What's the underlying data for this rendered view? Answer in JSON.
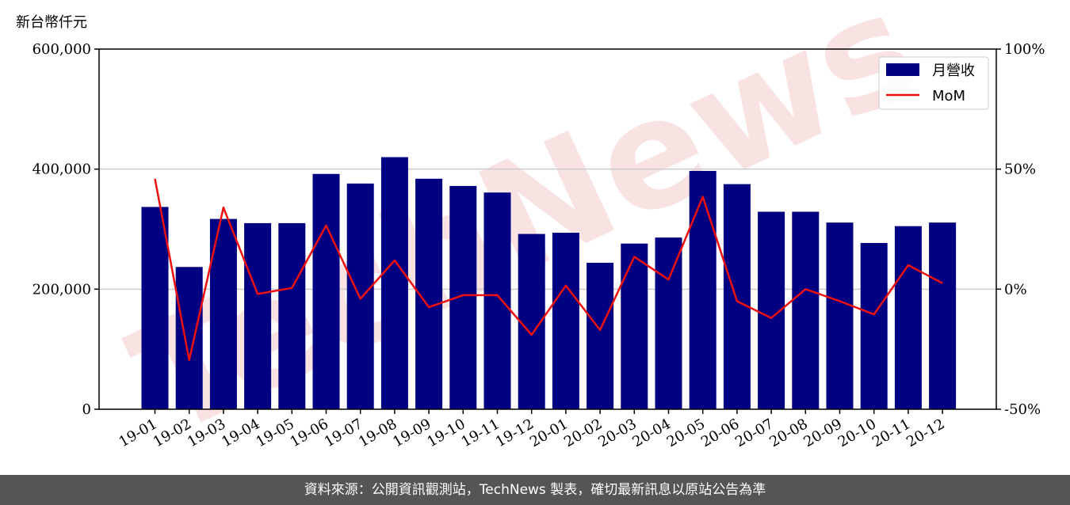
{
  "unit_label": "新台幣仟元",
  "footer_text": "資料來源：公開資訊觀測站，TechNews 製表，確切最新訊息以原站公告為準",
  "watermark": "TechNews",
  "colors": {
    "bar": "#000080",
    "line": "#ee1111",
    "footer_bg": "#555555",
    "grid": "#cccccc",
    "watermark": "#f6d6d6"
  },
  "chart_data": {
    "type": "bar",
    "categories": [
      "19-01",
      "19-02",
      "19-03",
      "19-04",
      "19-05",
      "19-06",
      "19-07",
      "19-08",
      "19-09",
      "19-10",
      "19-11",
      "19-12",
      "20-01",
      "20-02",
      "20-03",
      "20-04",
      "20-05",
      "20-06",
      "20-07",
      "20-08",
      "20-09",
      "20-10",
      "20-11",
      "20-12"
    ],
    "series": [
      {
        "name": "月營收",
        "type": "bar",
        "axis": "left",
        "values": [
          337000,
          237000,
          317000,
          310000,
          310000,
          392000,
          376000,
          420000,
          384000,
          372000,
          361000,
          292000,
          294000,
          244000,
          276000,
          286000,
          397000,
          375000,
          329000,
          329000,
          311000,
          277000,
          305000,
          311000
        ]
      },
      {
        "name": "MoM",
        "type": "line",
        "axis": "right",
        "values": [
          46,
          -29.5,
          34,
          -2,
          0.5,
          26.5,
          -4,
          12,
          -7.5,
          -2.5,
          -2.5,
          -19,
          1.5,
          -17,
          13.5,
          4,
          38.5,
          -5,
          -12,
          0,
          -5,
          -10.5,
          10,
          2.5
        ]
      }
    ],
    "ylim_left": [
      0,
      600000
    ],
    "ylim_right": [
      -50,
      100
    ],
    "yticks_left": [
      "0",
      "200,000",
      "400,000",
      "600,000"
    ],
    "yticks_left_values": [
      0,
      200000,
      400000,
      600000
    ],
    "yticks_right": [
      "-50%",
      "0%",
      "50%",
      "100%"
    ],
    "yticks_right_values": [
      -50,
      0,
      50,
      100
    ],
    "grid": "horizontal",
    "legend": "top-right"
  }
}
